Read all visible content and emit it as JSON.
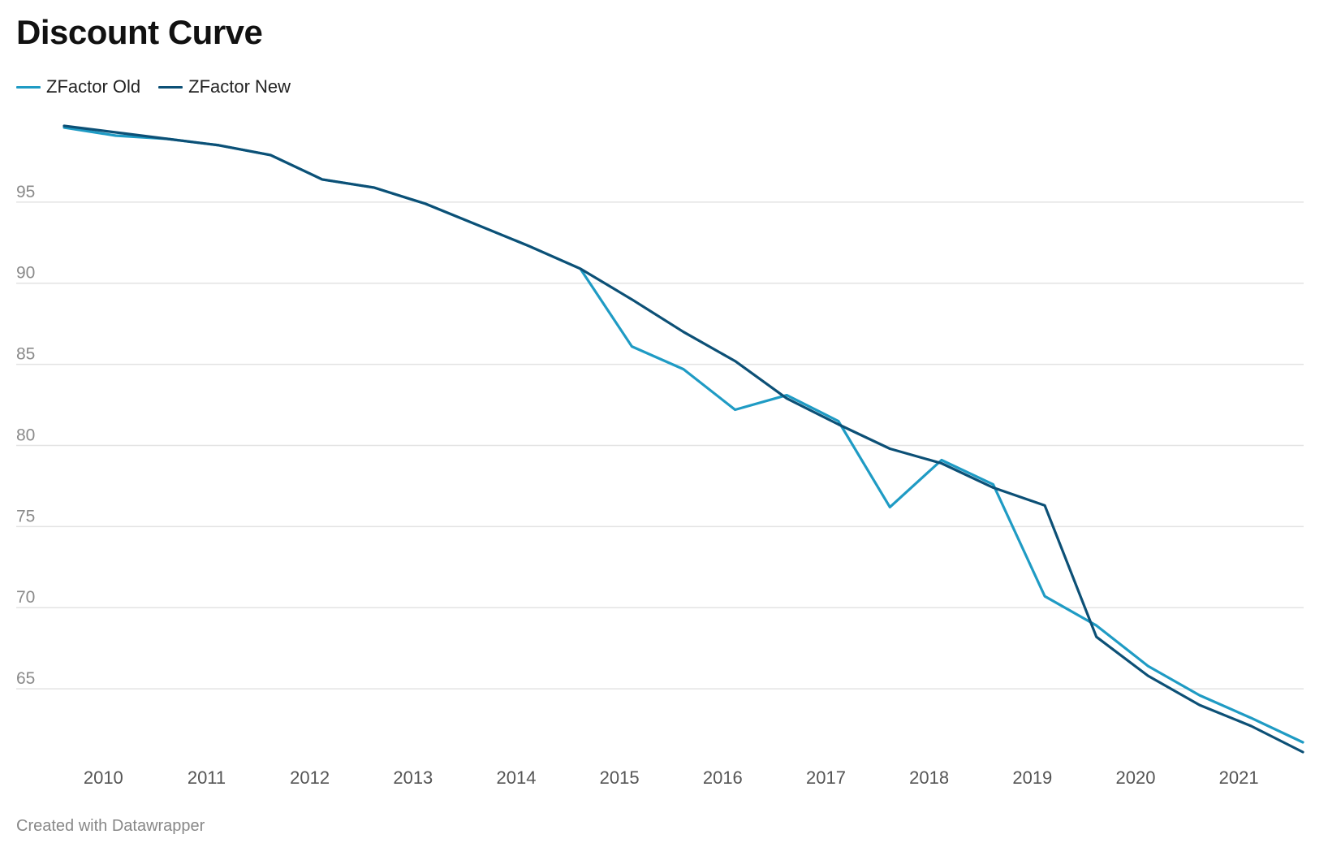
{
  "chart_data": {
    "type": "line",
    "title": "Discount Curve",
    "xlabel": "",
    "ylabel": "",
    "x_tick_labels": [
      "2010",
      "2011",
      "2012",
      "2013",
      "2014",
      "2015",
      "2016",
      "2017",
      "2018",
      "2019",
      "2020",
      "2021"
    ],
    "y_ticks": [
      65,
      70,
      75,
      80,
      85,
      90,
      95
    ],
    "ylim": [
      60.8,
      100.6
    ],
    "grid": "horizontal",
    "legend_position": "top-left",
    "series": [
      {
        "name": "ZFactor Old",
        "color": "#1f9bc4",
        "points": [
          [
            2009.62,
            99.6
          ],
          [
            2010.12,
            99.1
          ],
          [
            2010.62,
            98.9
          ],
          [
            2011.12,
            98.5
          ],
          [
            2011.62,
            97.9
          ],
          [
            2012.12,
            96.4
          ],
          [
            2012.62,
            95.9
          ],
          [
            2013.12,
            94.9
          ],
          [
            2013.62,
            93.6
          ],
          [
            2014.12,
            92.3
          ],
          [
            2014.62,
            90.9
          ],
          [
            2015.12,
            86.1
          ],
          [
            2015.62,
            84.7
          ],
          [
            2016.12,
            82.2
          ],
          [
            2016.62,
            83.1
          ],
          [
            2017.12,
            81.5
          ],
          [
            2017.62,
            76.2
          ],
          [
            2018.12,
            79.1
          ],
          [
            2018.62,
            77.6
          ],
          [
            2019.12,
            70.7
          ],
          [
            2019.62,
            68.9
          ],
          [
            2020.12,
            66.4
          ],
          [
            2020.62,
            64.6
          ],
          [
            2021.12,
            63.2
          ],
          [
            2021.62,
            61.7
          ]
        ]
      },
      {
        "name": "ZFactor New",
        "color": "#0c5076",
        "points": [
          [
            2009.62,
            99.7
          ],
          [
            2010.12,
            99.3
          ],
          [
            2010.62,
            98.9
          ],
          [
            2011.12,
            98.5
          ],
          [
            2011.62,
            97.9
          ],
          [
            2012.12,
            96.4
          ],
          [
            2012.62,
            95.9
          ],
          [
            2013.12,
            94.9
          ],
          [
            2013.62,
            93.6
          ],
          [
            2014.12,
            92.3
          ],
          [
            2014.62,
            90.9
          ],
          [
            2015.12,
            89.0
          ],
          [
            2015.62,
            87.0
          ],
          [
            2016.12,
            85.2
          ],
          [
            2016.62,
            82.9
          ],
          [
            2017.12,
            81.3
          ],
          [
            2017.62,
            79.8
          ],
          [
            2018.12,
            78.9
          ],
          [
            2018.62,
            77.4
          ],
          [
            2019.12,
            76.3
          ],
          [
            2019.62,
            68.2
          ],
          [
            2020.12,
            65.8
          ],
          [
            2020.62,
            64.0
          ],
          [
            2021.12,
            62.7
          ],
          [
            2021.62,
            61.1
          ]
        ]
      }
    ]
  },
  "footer": {
    "credit": "Created with Datawrapper"
  }
}
